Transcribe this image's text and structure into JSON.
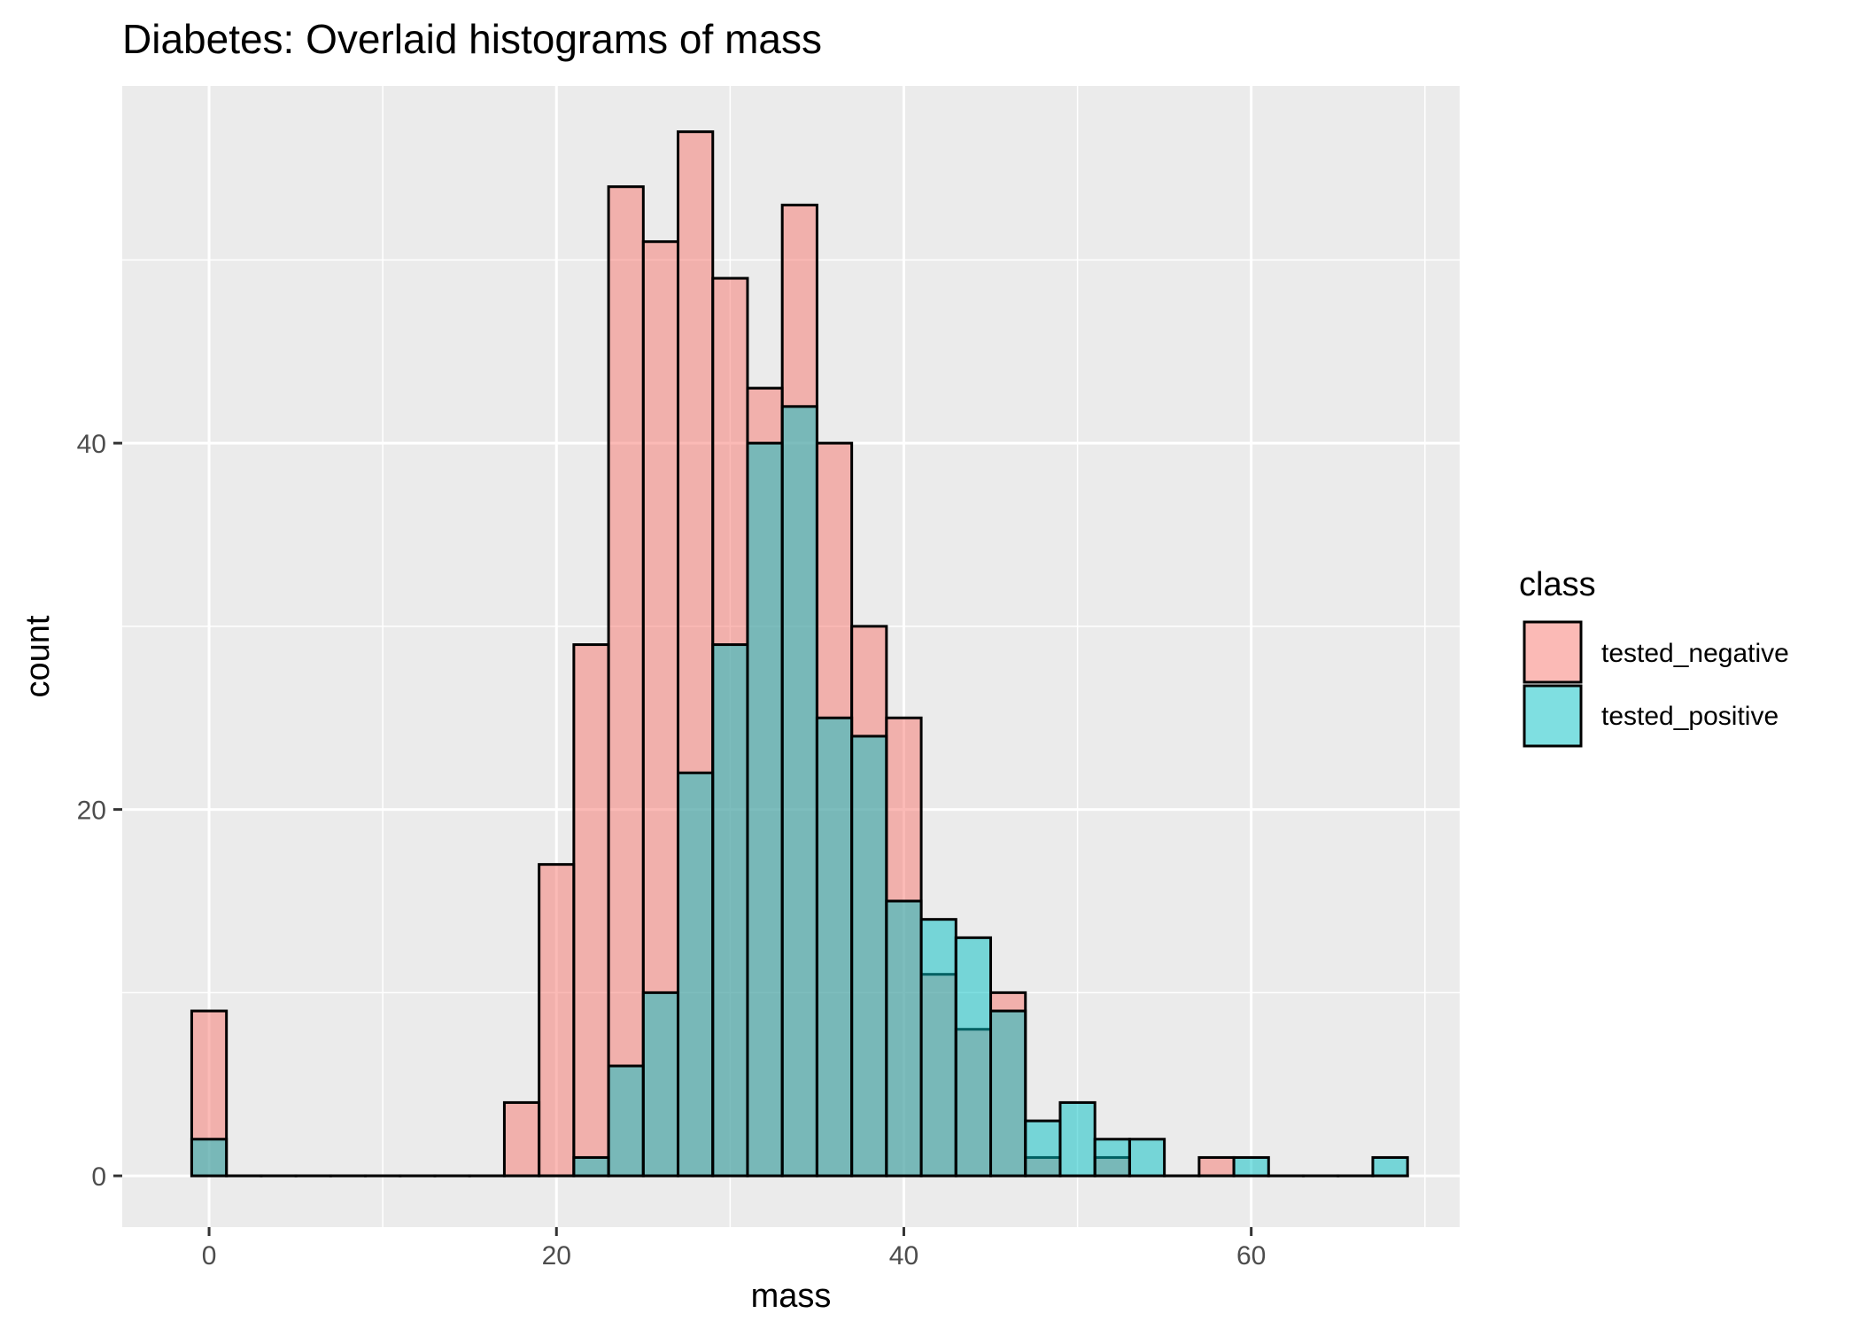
{
  "chart_data": {
    "type": "bar",
    "title": "Diabetes: Overlaid histograms of mass",
    "xlabel": "mass",
    "ylabel": "count",
    "xlim": [
      -5,
      72
    ],
    "ylim": [
      -2.8,
      59.5
    ],
    "x_ticks": [
      0,
      20,
      40,
      60
    ],
    "y_ticks": [
      0,
      20,
      40
    ],
    "bin_width": 2,
    "bin_start": -1,
    "legend_title": "class",
    "legend_position": "right",
    "grid": true,
    "series": [
      {
        "name": "tested_negative",
        "color": "#F8766D",
        "values": [
          9,
          0,
          0,
          0,
          0,
          0,
          0,
          0,
          0,
          4,
          17,
          29,
          54,
          51,
          57,
          49,
          43,
          53,
          40,
          30,
          25,
          11,
          8,
          10,
          1,
          0,
          1,
          0,
          0,
          1,
          0,
          0,
          0,
          0,
          0
        ]
      },
      {
        "name": "tested_positive",
        "color": "#00BFC4",
        "values": [
          2,
          0,
          0,
          0,
          0,
          0,
          0,
          0,
          0,
          0,
          0,
          1,
          6,
          10,
          22,
          29,
          40,
          42,
          25,
          24,
          15,
          14,
          13,
          9,
          3,
          4,
          2,
          2,
          0,
          0,
          1,
          0,
          0,
          0,
          1
        ]
      }
    ]
  }
}
